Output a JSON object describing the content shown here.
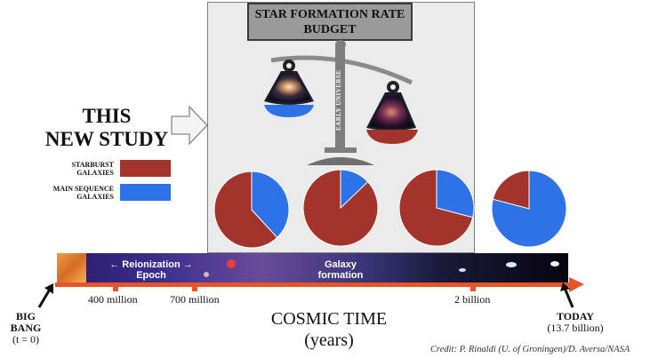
{
  "title": {
    "line1": "STAR FORMATION RATE",
    "line2": "BUDGET"
  },
  "study_label": {
    "line1": "THIS",
    "line2": "NEW STUDY"
  },
  "scale_text": "EARLY UNIVERSE",
  "legend": [
    {
      "line1": "STARBURST",
      "line2": "GALAXIES",
      "color": "#a3342c"
    },
    {
      "line1": "MAIN SEQUENCE",
      "line2": "GALAXIES",
      "color": "#2e72e8"
    }
  ],
  "pies": [
    {
      "starburst_fraction": 0.62
    },
    {
      "starburst_fraction": 0.87
    },
    {
      "starburst_fraction": 0.71
    },
    {
      "starburst_fraction": 0.21
    }
  ],
  "strip": {
    "reionization": {
      "line1": "← Reionization →",
      "line2": "Epoch"
    },
    "galaxy": {
      "line1": "Galaxy",
      "line2": "formation"
    }
  },
  "timeline": {
    "ticks": [
      "400 million",
      "700 million",
      "2 billion"
    ],
    "start": {
      "line1": "BIG",
      "line2": "BANG",
      "line3": "(t = 0)"
    },
    "end": {
      "line1": "TODAY",
      "line2": "(13.7 billion)"
    },
    "axis_title": {
      "line1": "COSMIC TIME",
      "line2": "(years)"
    }
  },
  "credit": "Credit: P. Rinaldi (U. of Groningen)/D. Aversa/NASA",
  "colors": {
    "starburst": "#a3342c",
    "main_sequence": "#2e72e8",
    "arrow": "#e8542a",
    "panel": "#ebebeb"
  }
}
